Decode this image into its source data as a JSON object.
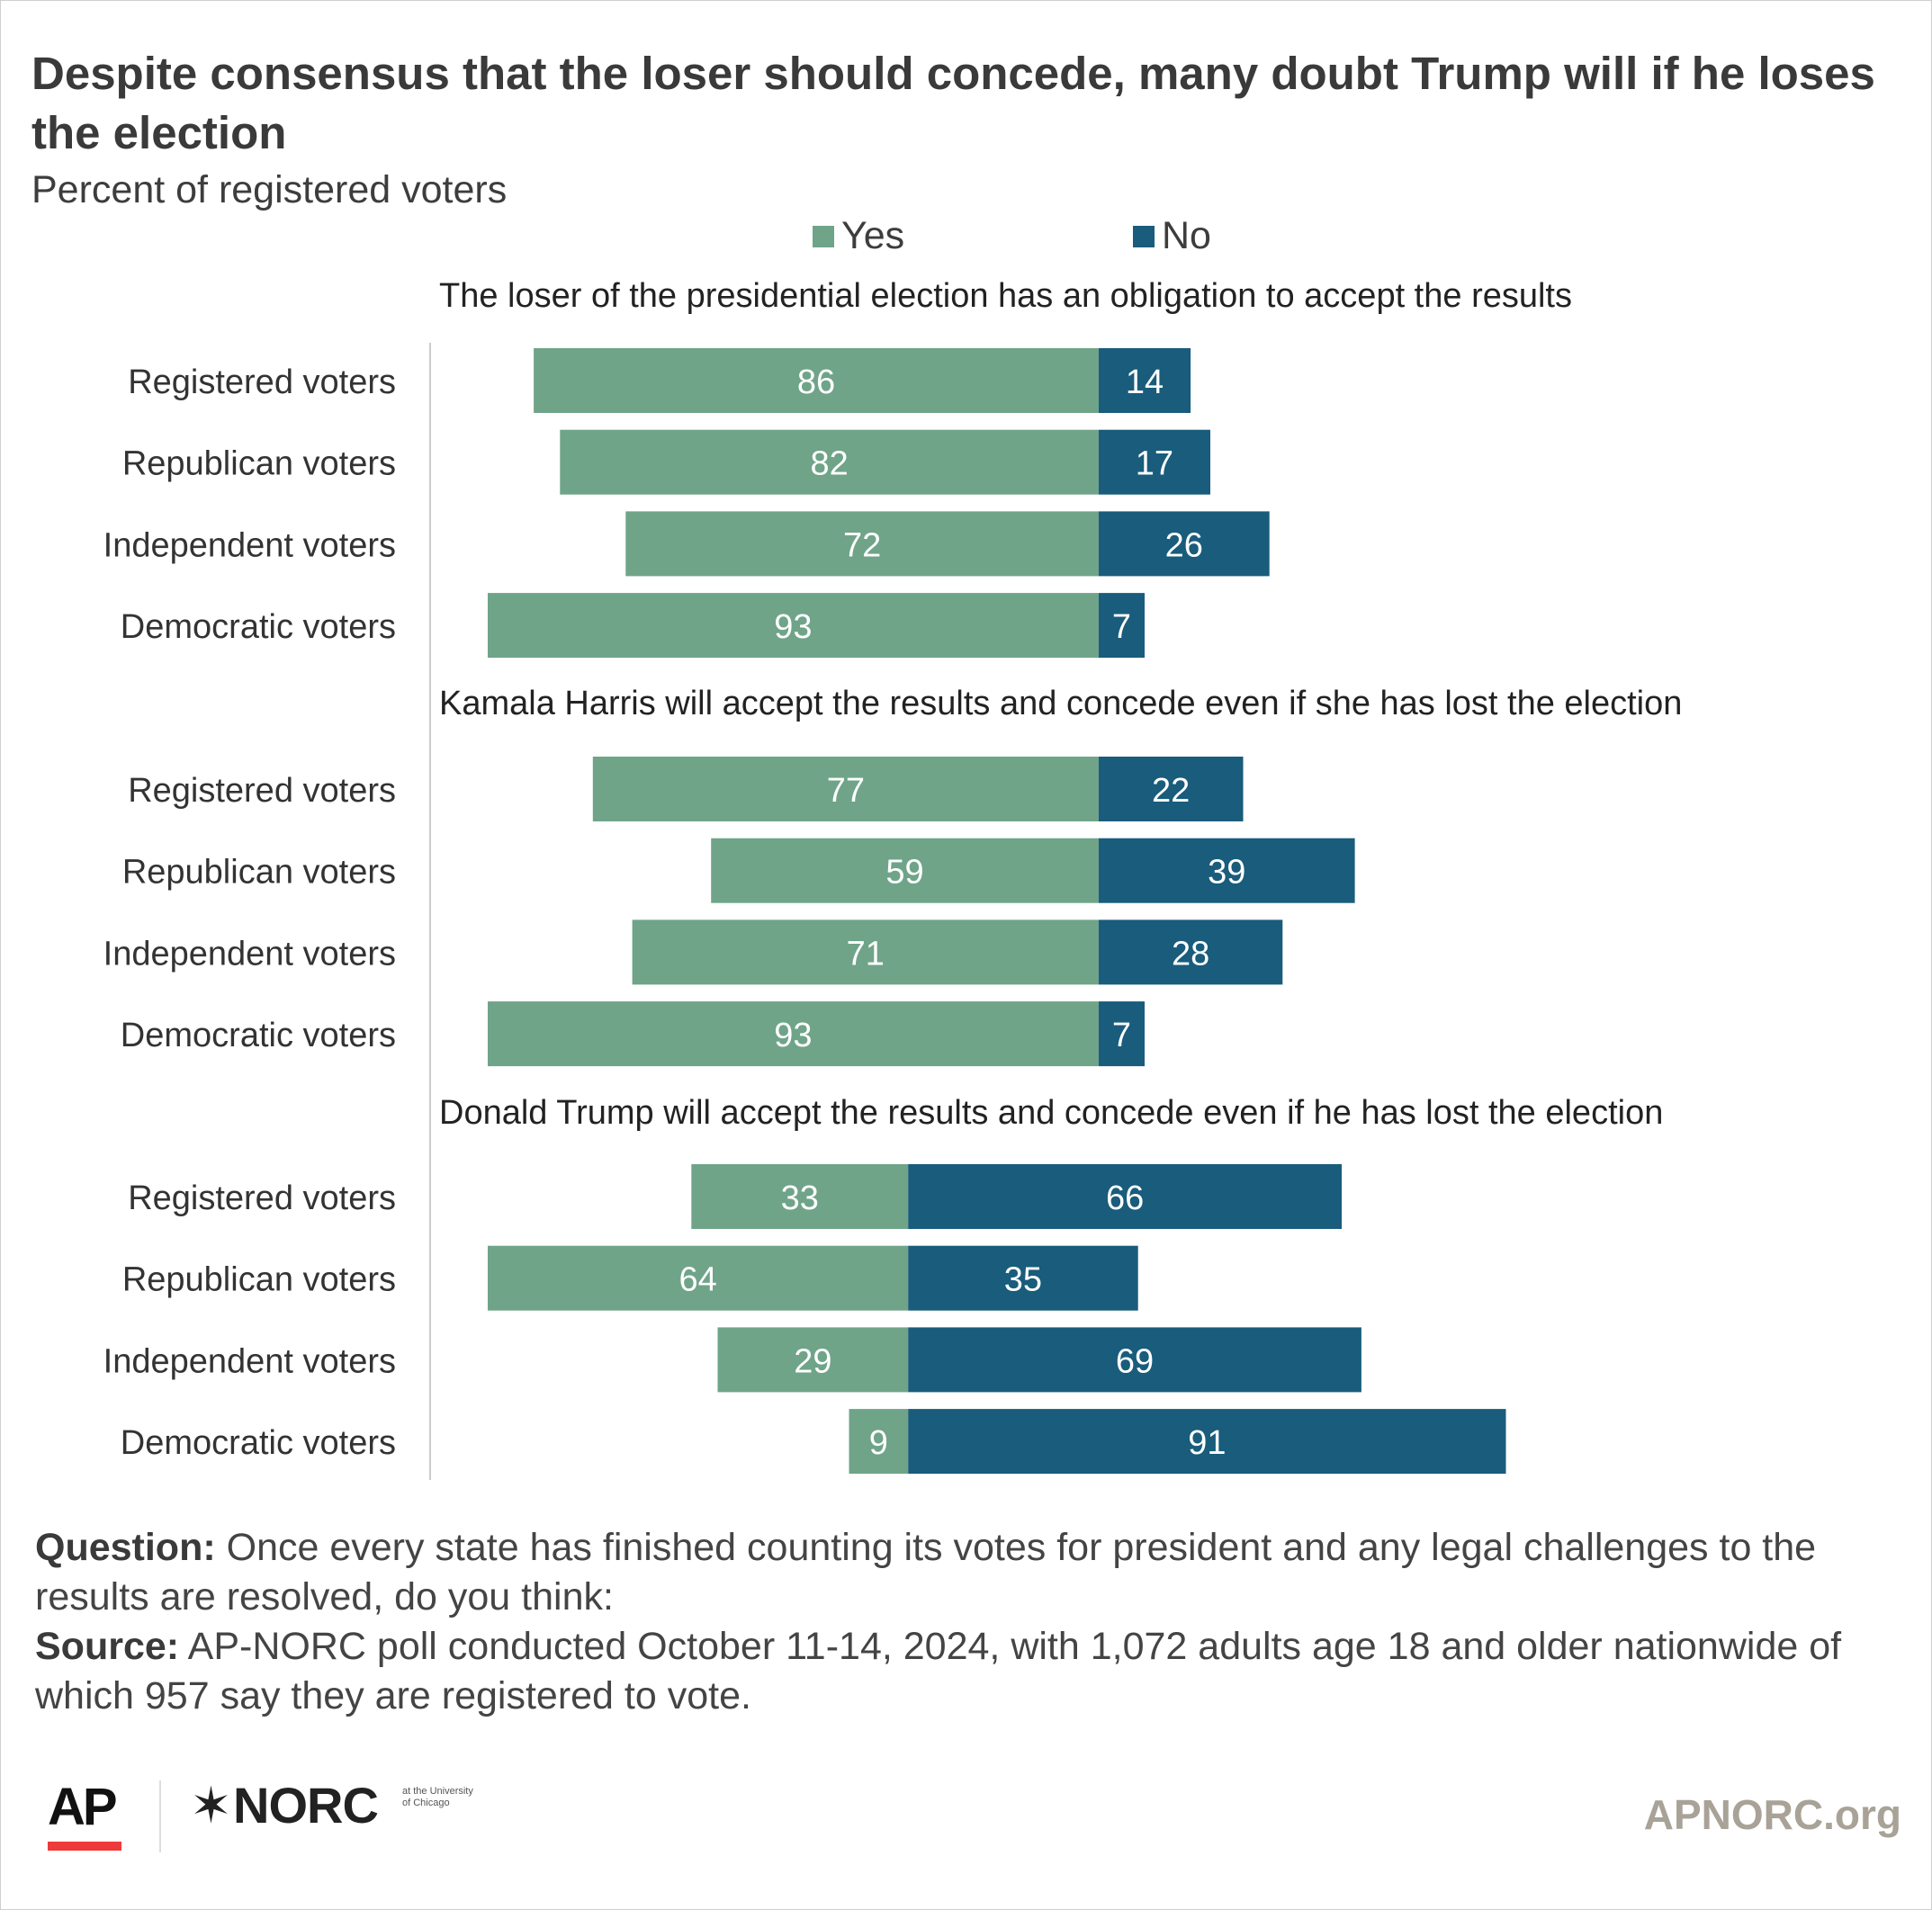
{
  "header": {
    "title": "Despite consensus that the loser should concede, many doubt Trump will if he loses the election",
    "subtitle": "Percent of registered voters"
  },
  "legend": {
    "yes": "Yes",
    "no": "No"
  },
  "colors": {
    "yes": "#6fa489",
    "no": "#195c7c",
    "axis": "#cccccc",
    "ap_red": "#ee3a3a",
    "site": "#a8a297"
  },
  "chart_data": {
    "type": "bar",
    "orientation": "horizontal",
    "stacked": "diverging",
    "legend_placement": "top",
    "grid": false,
    "series": [
      {
        "name": "Yes",
        "key": "yes"
      },
      {
        "name": "No",
        "key": "no"
      }
    ],
    "groups": [
      {
        "title": "The loser of the presidential election has an obligation to accept the results",
        "rows": [
          {
            "label": "Registered voters",
            "yes": 86,
            "no": 14
          },
          {
            "label": "Republican voters",
            "yes": 82,
            "no": 17
          },
          {
            "label": "Independent voters",
            "yes": 72,
            "no": 26
          },
          {
            "label": "Democratic voters",
            "yes": 93,
            "no": 7
          }
        ]
      },
      {
        "title": "Kamala Harris will accept the results and concede even if she has lost the election",
        "rows": [
          {
            "label": "Registered voters",
            "yes": 77,
            "no": 22
          },
          {
            "label": "Republican voters",
            "yes": 59,
            "no": 39
          },
          {
            "label": "Independent voters",
            "yes": 71,
            "no": 28
          },
          {
            "label": "Democratic voters",
            "yes": 93,
            "no": 7
          }
        ]
      },
      {
        "title": "Donald Trump will accept the results and concede even if he has lost the election",
        "rows": [
          {
            "label": "Registered voters",
            "yes": 33,
            "no": 66
          },
          {
            "label": "Republican voters",
            "yes": 64,
            "no": 35
          },
          {
            "label": "Independent voters",
            "yes": 29,
            "no": 69
          },
          {
            "label": "Democratic voters",
            "yes": 9,
            "no": 91
          }
        ]
      }
    ]
  },
  "notes": {
    "question_label": "Question:",
    "question_text": " Once every state has finished counting its votes for president and any legal challenges to the results are resolved, do you think:",
    "source_label": "Source:",
    "source_text": " AP-NORC poll conducted October 11-14, 2024, with 1,072 adults age 18 and older nationwide of which 957 say they are registered to vote."
  },
  "footer": {
    "ap_logo": "AP",
    "norc_logo": "NORC",
    "norc_logo_small": "at the University of Chicago",
    "website": "APNORC.org"
  }
}
